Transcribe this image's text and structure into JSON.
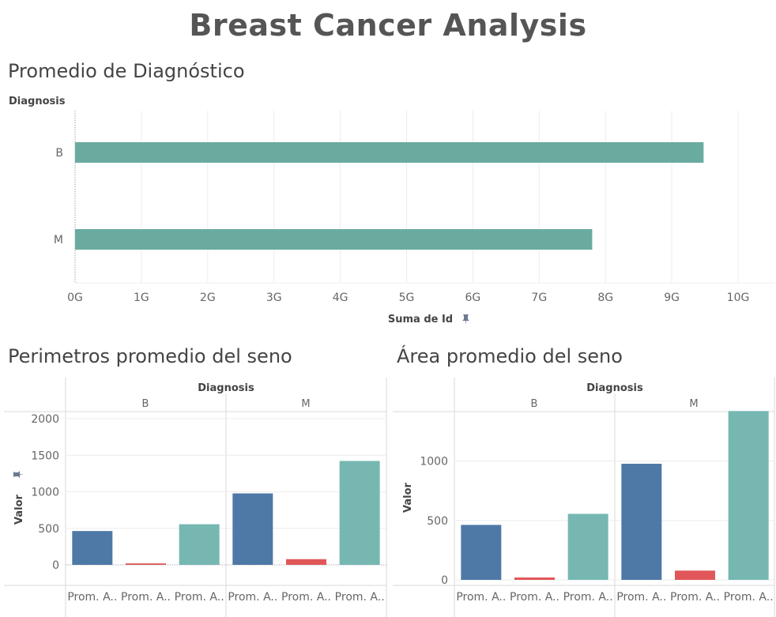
{
  "dashboard": {
    "title": "Breast Cancer Analysis"
  },
  "colors": {
    "teal": "#6aab9f",
    "blue": "#4e79a7",
    "red": "#e15759",
    "teal_light": "#76b7b2",
    "grid": "#ececec",
    "axis": "#d9d9d9",
    "text": "#666666"
  },
  "icons": {
    "pin": "pin-icon"
  },
  "top_chart": {
    "title": "Promedio de Diagnóstico",
    "row_header": "Diagnosis",
    "xlabel": "Suma de Id",
    "xticks": [
      "0G",
      "1G",
      "2G",
      "3G",
      "4G",
      "5G",
      "6G",
      "7G",
      "8G",
      "9G",
      "10G"
    ]
  },
  "perimeter_chart": {
    "title": "Perimetros promedio del seno",
    "column_header": "Diagnosis",
    "groups": [
      "B",
      "M"
    ],
    "ylabel": "Valor",
    "yticks": [
      "0",
      "500",
      "1000",
      "1500",
      "2000"
    ],
    "category_label": "Prom. A.."
  },
  "area_chart": {
    "title": "Área promedio del seno",
    "column_header": "Diagnosis",
    "groups": [
      "B",
      "M"
    ],
    "ylabel": "Valor",
    "yticks": [
      "0",
      "500",
      "1000"
    ],
    "category_label": "Prom. A.."
  },
  "chart_data": [
    {
      "type": "bar",
      "orientation": "horizontal",
      "title": "Promedio de Diagnóstico",
      "categories": [
        "B",
        "M"
      ],
      "values": [
        9.48,
        7.8
      ],
      "unit": "G",
      "xlabel": "Suma de Id",
      "xlim": [
        0,
        10
      ],
      "color": "#6aab9f",
      "grid": true
    },
    {
      "type": "bar",
      "title": "Perimetros promedio del seno",
      "groups": [
        "B",
        "M"
      ],
      "categories": [
        "Prom. A..",
        "Prom. A..",
        "Prom. A.."
      ],
      "series_colors": [
        "#4e79a7",
        "#e15759",
        "#76b7b2"
      ],
      "values": {
        "B": [
          463,
          20,
          556
        ],
        "M": [
          978,
          78,
          1422
        ]
      },
      "ylabel": "Valor",
      "ylim": [
        -120,
        2100
      ],
      "grid": true
    },
    {
      "type": "bar",
      "title": "Área promedio del seno",
      "groups": [
        "B",
        "M"
      ],
      "categories": [
        "Prom. A..",
        "Prom. A..",
        "Prom. A.."
      ],
      "series_colors": [
        "#4e79a7",
        "#e15759",
        "#76b7b2"
      ],
      "values": {
        "B": [
          463,
          20,
          556
        ],
        "M": [
          978,
          78,
          1422
        ]
      },
      "ylabel": "Valor",
      "ylim": [
        -70,
        1460
      ],
      "grid": true
    }
  ]
}
